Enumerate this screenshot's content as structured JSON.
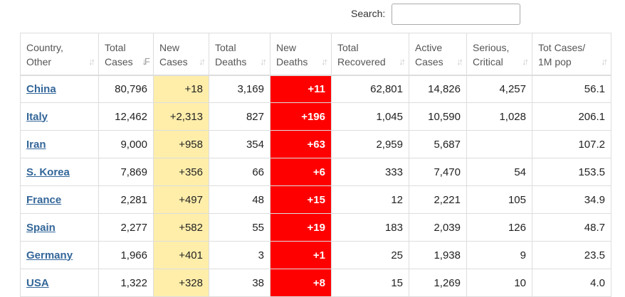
{
  "colors": {
    "new_cases_bg": "#ffeeaa",
    "new_deaths_bg": "#ff0000",
    "link": "#336699"
  },
  "search": {
    "label": "Search:",
    "value": ""
  },
  "table": {
    "columns": [
      {
        "label": "Country,\nOther",
        "sort_icon": "sort-icon"
      },
      {
        "label": "Total\nCases",
        "sort_icon": "sort-descending-icon"
      },
      {
        "label": "New\nCases",
        "sort_icon": "sort-icon"
      },
      {
        "label": "Total\nDeaths",
        "sort_icon": "sort-icon"
      },
      {
        "label": "New\nDeaths",
        "sort_icon": "sort-icon"
      },
      {
        "label": "Total\nRecovered",
        "sort_icon": "sort-icon"
      },
      {
        "label": "Active\nCases",
        "sort_icon": "sort-icon"
      },
      {
        "label": "Serious,\nCritical",
        "sort_icon": "sort-icon"
      },
      {
        "label": "Tot Cases/\n1M pop",
        "sort_icon": "sort-icon"
      }
    ],
    "rows": [
      {
        "country": "China",
        "total_cases": "80,796",
        "new_cases": "+18",
        "total_deaths": "3,169",
        "new_deaths": "+11",
        "total_recovered": "62,801",
        "active_cases": "14,826",
        "serious_critical": "4,257",
        "tot_cases_per_1m": "56.1"
      },
      {
        "country": "Italy",
        "total_cases": "12,462",
        "new_cases": "+2,313",
        "total_deaths": "827",
        "new_deaths": "+196",
        "total_recovered": "1,045",
        "active_cases": "10,590",
        "serious_critical": "1,028",
        "tot_cases_per_1m": "206.1"
      },
      {
        "country": "Iran",
        "total_cases": "9,000",
        "new_cases": "+958",
        "total_deaths": "354",
        "new_deaths": "+63",
        "total_recovered": "2,959",
        "active_cases": "5,687",
        "serious_critical": "",
        "tot_cases_per_1m": "107.2"
      },
      {
        "country": "S. Korea",
        "total_cases": "7,869",
        "new_cases": "+356",
        "total_deaths": "66",
        "new_deaths": "+6",
        "total_recovered": "333",
        "active_cases": "7,470",
        "serious_critical": "54",
        "tot_cases_per_1m": "153.5"
      },
      {
        "country": "France",
        "total_cases": "2,281",
        "new_cases": "+497",
        "total_deaths": "48",
        "new_deaths": "+15",
        "total_recovered": "12",
        "active_cases": "2,221",
        "serious_critical": "105",
        "tot_cases_per_1m": "34.9"
      },
      {
        "country": "Spain",
        "total_cases": "2,277",
        "new_cases": "+582",
        "total_deaths": "55",
        "new_deaths": "+19",
        "total_recovered": "183",
        "active_cases": "2,039",
        "serious_critical": "126",
        "tot_cases_per_1m": "48.7"
      },
      {
        "country": "Germany",
        "total_cases": "1,966",
        "new_cases": "+401",
        "total_deaths": "3",
        "new_deaths": "+1",
        "total_recovered": "25",
        "active_cases": "1,938",
        "serious_critical": "9",
        "tot_cases_per_1m": "23.5"
      },
      {
        "country": "USA",
        "total_cases": "1,322",
        "new_cases": "+328",
        "total_deaths": "38",
        "new_deaths": "+8",
        "total_recovered": "15",
        "active_cases": "1,269",
        "serious_critical": "10",
        "tot_cases_per_1m": "4.0"
      }
    ]
  }
}
